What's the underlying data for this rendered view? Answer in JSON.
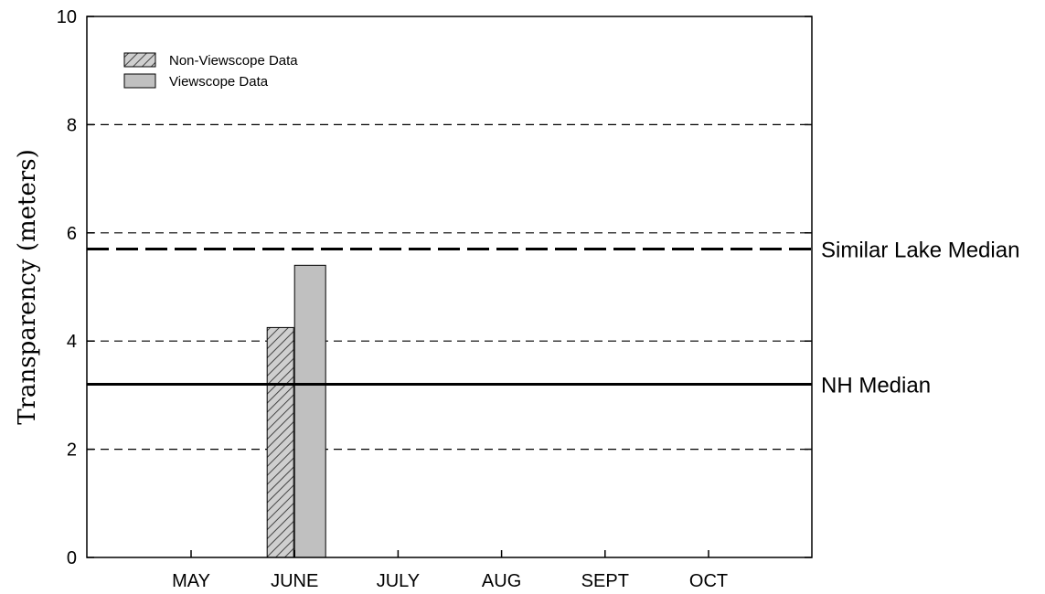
{
  "chart_data": {
    "type": "bar",
    "categories": [
      "MAY",
      "JUNE",
      "JULY",
      "AUG",
      "SEPT",
      "OCT"
    ],
    "series": [
      {
        "name": "Non-Viewscope Data",
        "values": [
          null,
          4.25,
          null,
          null,
          null,
          null
        ],
        "color": "#c8c8c8",
        "pattern": "diagonal-hatch"
      },
      {
        "name": "Viewscope Data",
        "values": [
          null,
          5.4,
          null,
          null,
          null,
          null
        ],
        "color": "#c0c0c0",
        "pattern": "solid"
      }
    ],
    "reference_lines": [
      {
        "label": "Similar Lake Median",
        "value": 5.7,
        "style": "long-dash"
      },
      {
        "label": "NH Median",
        "value": 3.2,
        "style": "solid"
      }
    ],
    "ylabel": "Transparency (meters)",
    "xlabel": "",
    "ylim": [
      0,
      10
    ],
    "yticks": [
      0,
      2,
      4,
      6,
      8,
      10
    ],
    "grid": "dashed horizontal at 2, 4, 6, 8",
    "legend_position": "top-left"
  }
}
